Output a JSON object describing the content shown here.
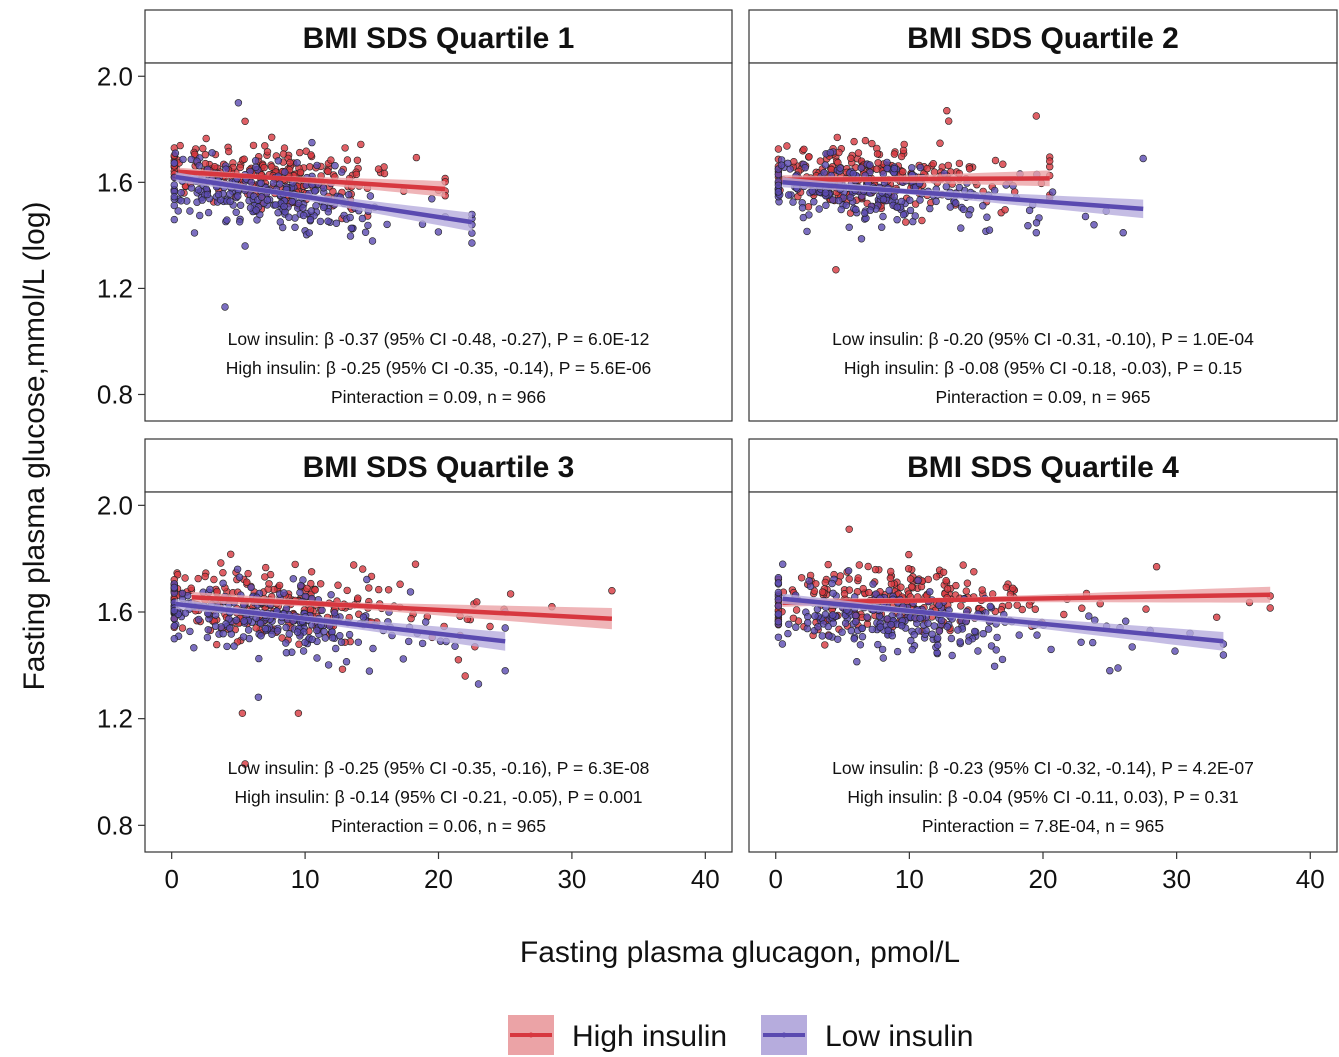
{
  "chart_data": {
    "type": "scatter",
    "xlabel": "Fasting plasma glucagon, pmol/L",
    "ylabel": "Fasting plasma glucose,mmol/L (log)",
    "xlim": [
      -2,
      42
    ],
    "ylim": [
      0.7,
      2.05
    ],
    "x_ticks": [
      0,
      10,
      20,
      30,
      40
    ],
    "y_ticks": [
      0.8,
      1.2,
      1.6,
      2.0
    ],
    "y_tick_labels": [
      "0.8",
      "1.2",
      "1.6",
      "2.0"
    ],
    "grid": false,
    "legend": {
      "position": "bottom",
      "items": [
        {
          "label": "High insulin",
          "color": "#d7373f"
        },
        {
          "label": "Low insulin",
          "color": "#5a4ab0"
        }
      ]
    },
    "colors": {
      "high_insulin": "#d7373f",
      "low_insulin": "#5a4ab0",
      "high_band": "#eba3a6",
      "low_band": "#b6acdd"
    },
    "panels": [
      {
        "title": "BMI SDS Quartile 1",
        "annotations": [
          "Low insulin: β -0.37 (95% CI -0.48, -0.27), P = 6.0E-12",
          "High insulin: β -0.25 (95% CI -0.35, -0.14), P = 5.6E-06",
          "Pinteraction = 0.09, n = 966"
        ],
        "series": [
          {
            "name": "High insulin",
            "x_range": [
              0.5,
              20.5
            ],
            "y_start": 1.64,
            "y_end": 1.575,
            "ci": [
              0.008,
              0.03
            ],
            "points": {
              "n": 260,
              "x_center": 6.5,
              "x_spread": 4.0,
              "x_max": 20.5,
              "y_center": 1.625,
              "y_spread": 0.075
            },
            "outliers": [
              [
                5.5,
                1.83
              ],
              [
                7.5,
                1.77
              ],
              [
                13.0,
                1.73
              ],
              [
                15.5,
                1.65
              ],
              [
                20.0,
                1.57
              ]
            ]
          },
          {
            "name": "Low insulin",
            "x_range": [
              0.3,
              22.5
            ],
            "y_start": 1.62,
            "y_end": 1.45,
            "ci": [
              0.01,
              0.035
            ],
            "points": {
              "n": 240,
              "x_center": 6.5,
              "x_spread": 4.0,
              "x_max": 22.5,
              "y_center": 1.56,
              "y_spread": 0.08
            },
            "outliers": [
              [
                5.0,
                1.9
              ],
              [
                4.0,
                1.13
              ],
              [
                22.5,
                1.44
              ],
              [
                20.5,
                1.47
              ],
              [
                5.5,
                1.36
              ]
            ]
          }
        ]
      },
      {
        "title": "BMI SDS Quartile 2",
        "annotations": [
          "Low insulin: β -0.20 (95% CI -0.31, -0.10), P = 1.0E-04",
          "High insulin: β -0.08 (95% CI -0.18, -0.03), P = 0.15",
          "Pinteraction = 0.09, n = 965"
        ],
        "series": [
          {
            "name": "High insulin",
            "x_range": [
              0.5,
              20.5
            ],
            "y_start": 1.61,
            "y_end": 1.615,
            "ci": [
              0.01,
              0.03
            ],
            "points": {
              "n": 250,
              "x_center": 6.5,
              "x_spread": 4.0,
              "x_max": 20.5,
              "y_center": 1.615,
              "y_spread": 0.085
            },
            "outliers": [
              [
                12.8,
                1.87
              ],
              [
                19.5,
                1.85
              ],
              [
                20.5,
                1.68
              ],
              [
                4.5,
                1.27
              ]
            ]
          },
          {
            "name": "Low insulin",
            "x_range": [
              0.5,
              27.5
            ],
            "y_start": 1.6,
            "y_end": 1.5,
            "ci": [
              0.01,
              0.035
            ],
            "points": {
              "n": 250,
              "x_center": 6.5,
              "x_spread": 4.0,
              "x_max": 27.5,
              "y_center": 1.57,
              "y_spread": 0.08
            },
            "outliers": [
              [
                27.5,
                1.69
              ],
              [
                26.0,
                1.41
              ],
              [
                19.5,
                1.41
              ],
              [
                16.0,
                1.42
              ]
            ]
          }
        ]
      },
      {
        "title": "BMI SDS Quartile 3",
        "annotations": [
          "Low insulin: β -0.25 (95% CI -0.35, -0.16), P = 6.3E-08",
          "High insulin: β -0.14 (95% CI -0.21, -0.05), P = 0.001",
          "Pinteraction = 0.06, n = 965"
        ],
        "series": [
          {
            "name": "High insulin",
            "x_range": [
              1.5,
              33
            ],
            "y_start": 1.655,
            "y_end": 1.575,
            "ci": [
              0.01,
              0.04
            ],
            "points": {
              "n": 260,
              "x_center": 7.0,
              "x_spread": 4.5,
              "x_max": 33,
              "y_center": 1.63,
              "y_spread": 0.09
            },
            "outliers": [
              [
                33.0,
                1.68
              ],
              [
                5.5,
                1.03
              ],
              [
                5.3,
                1.22
              ],
              [
                9.5,
                1.22
              ],
              [
                28.5,
                1.62
              ],
              [
                22.0,
                1.36
              ]
            ]
          },
          {
            "name": "Low insulin",
            "x_range": [
              0.3,
              25
            ],
            "y_start": 1.63,
            "y_end": 1.49,
            "ci": [
              0.01,
              0.035
            ],
            "points": {
              "n": 240,
              "x_center": 6.5,
              "x_spread": 4.5,
              "x_max": 25,
              "y_center": 1.58,
              "y_spread": 0.085
            },
            "outliers": [
              [
                23.0,
                1.33
              ],
              [
                25.0,
                1.6
              ],
              [
                0.2,
                1.5
              ],
              [
                6.5,
                1.28
              ]
            ]
          }
        ]
      },
      {
        "title": "BMI SDS Quartile 4",
        "annotations": [
          "Low insulin: β -0.23 (95% CI -0.32, -0.14), P = 4.2E-07",
          "High insulin: β -0.04 (95% CI -0.11, 0.03), P = 0.31",
          "Pinteraction = 7.8E-04, n = 965"
        ],
        "series": [
          {
            "name": "High insulin",
            "x_range": [
              0.5,
              37
            ],
            "y_start": 1.635,
            "y_end": 1.665,
            "ci": [
              0.008,
              0.03
            ],
            "points": {
              "n": 260,
              "x_center": 8.0,
              "x_spread": 5.0,
              "x_max": 37,
              "y_center": 1.645,
              "y_spread": 0.08
            },
            "outliers": [
              [
                37.0,
                1.66
              ],
              [
                28.5,
                1.77
              ],
              [
                5.5,
                1.91
              ],
              [
                33.0,
                1.58
              ]
            ]
          },
          {
            "name": "Low insulin",
            "x_range": [
              0.5,
              33.5
            ],
            "y_start": 1.65,
            "y_end": 1.49,
            "ci": [
              0.01,
              0.035
            ],
            "points": {
              "n": 250,
              "x_center": 7.5,
              "x_spread": 5.0,
              "x_max": 33.5,
              "y_center": 1.58,
              "y_spread": 0.08
            },
            "outliers": [
              [
                33.5,
                1.48
              ],
              [
                25.0,
                1.38
              ],
              [
                0.5,
                1.48
              ],
              [
                31.0,
                1.52
              ]
            ]
          }
        ]
      }
    ]
  }
}
